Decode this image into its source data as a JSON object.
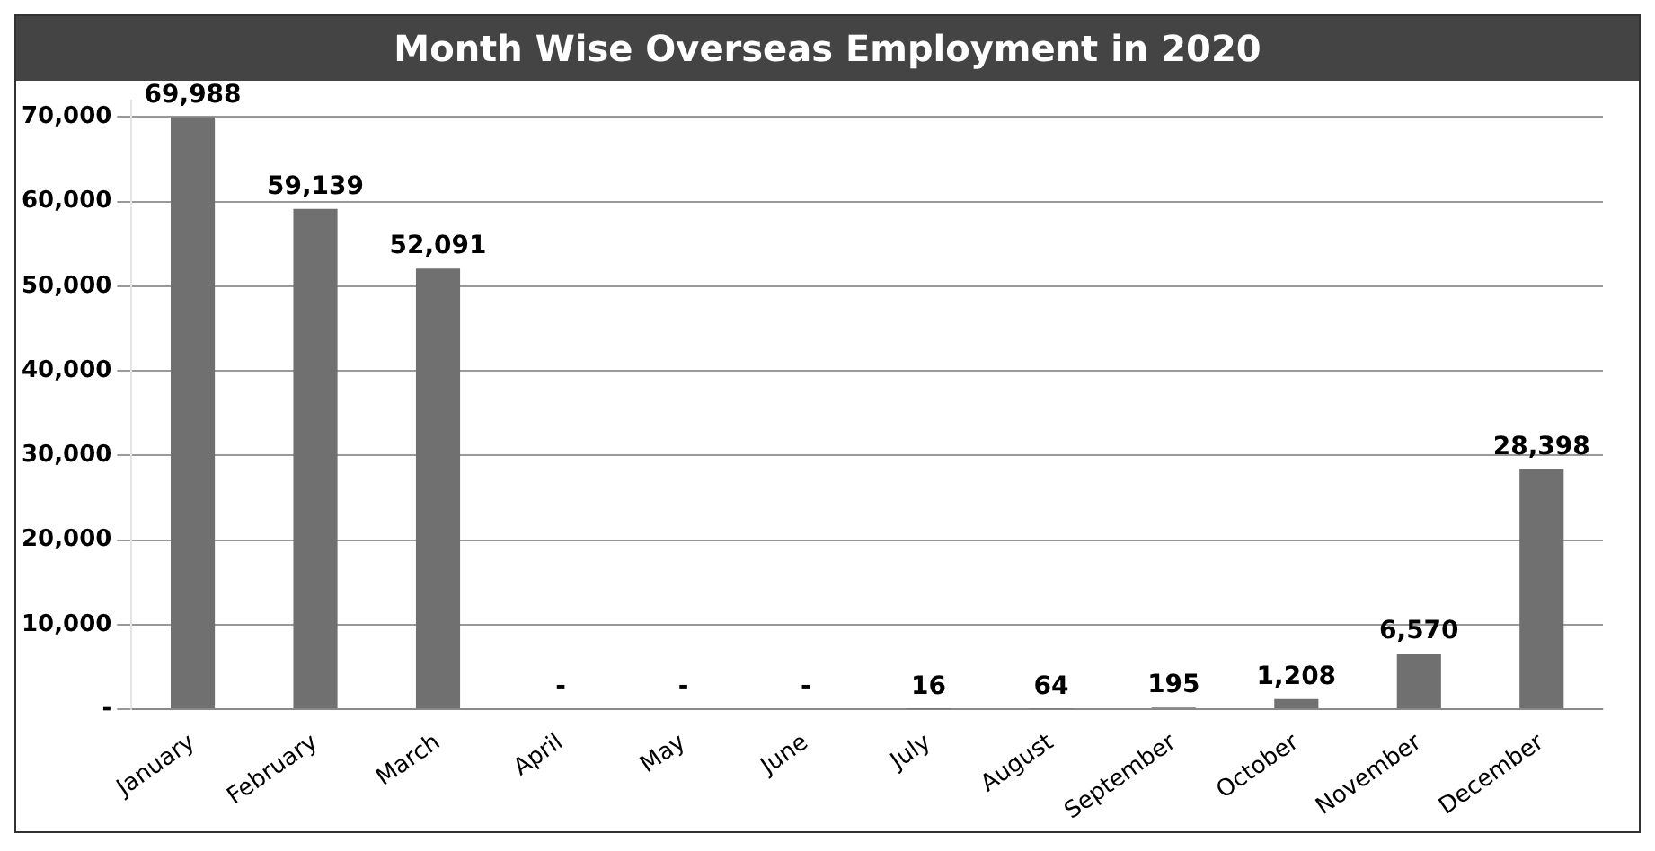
{
  "chart_data": {
    "type": "bar",
    "title": "Month Wise Overseas Employment in 2020",
    "categories": [
      "January",
      "February",
      "March",
      "April",
      "May",
      "June",
      "July",
      "August",
      "September",
      "October",
      "November",
      "December"
    ],
    "values": [
      69988,
      59139,
      52091,
      0,
      0,
      0,
      16,
      64,
      195,
      1208,
      6570,
      28398
    ],
    "value_labels": [
      "69,988",
      "59,139",
      "52,091",
      "-",
      "-",
      "-",
      "16",
      "64",
      "195",
      "1,208",
      "6,570",
      "28,398"
    ],
    "color": "#707070",
    "ylim": [
      0,
      72000
    ],
    "yticks": [
      {
        "value": 0,
        "label": "-"
      },
      {
        "value": 10000,
        "label": "10,000"
      },
      {
        "value": 20000,
        "label": "20,000"
      },
      {
        "value": 30000,
        "label": "30,000"
      },
      {
        "value": 40000,
        "label": "40,000"
      },
      {
        "value": 50000,
        "label": "50,000"
      },
      {
        "value": 60000,
        "label": "60,000"
      },
      {
        "value": 70000,
        "label": "70,000"
      }
    ],
    "grid": "y",
    "legend": false
  }
}
